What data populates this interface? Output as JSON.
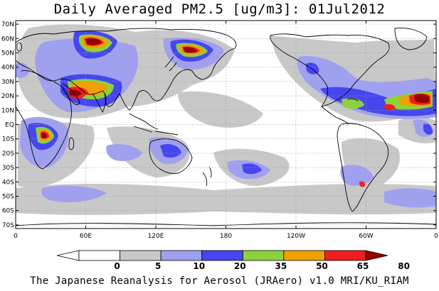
{
  "title": "Daily Averaged PM2.5 [ug/m3]: 01Jul2012",
  "footer": "The Japanese Reanalysis for Aerosol (JRAero) v1.0 MRI/KU_RIAM",
  "map": {
    "lat_labels": [
      "70N",
      "60N",
      "50N",
      "40N",
      "30N",
      "20N",
      "10N",
      "EQ",
      "10S",
      "20S",
      "30S",
      "40S",
      "50S",
      "60S",
      "70S"
    ],
    "lon_labels": [
      "0",
      "60E",
      "120E",
      "180",
      "120W",
      "60W",
      "0"
    ]
  },
  "legend": {
    "labels": [
      "0",
      "5",
      "10",
      "20",
      "35",
      "50",
      "65",
      "80"
    ],
    "colors": [
      "#ffffff",
      "#c8c8c8",
      "#a0a0f0",
      "#4646f0",
      "#8cd23c",
      "#f0a000",
      "#f01e1e",
      "#960000"
    ]
  },
  "colors": {
    "land_outline": "#000000",
    "grid": "#a0a0a0"
  }
}
